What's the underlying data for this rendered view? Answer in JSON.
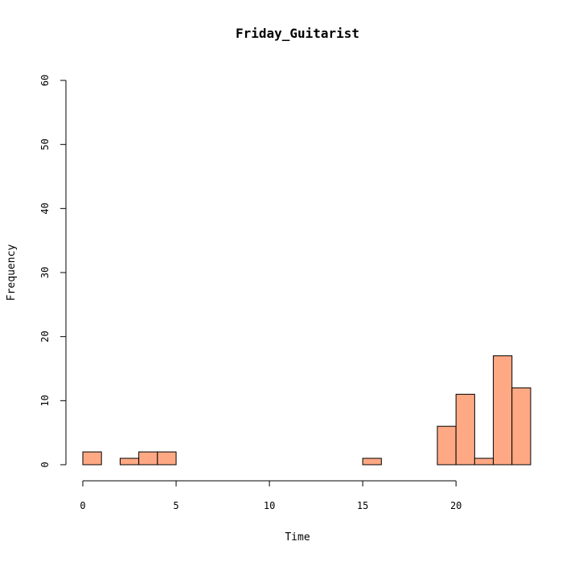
{
  "chart_data": {
    "type": "bar",
    "title": "Friday_Guitarist",
    "xlabel": "Time",
    "ylabel": "Frequency",
    "xlim": [
      0,
      24
    ],
    "ylim": [
      0,
      60
    ],
    "xticks": [
      0,
      5,
      10,
      15,
      20
    ],
    "yticks": [
      0,
      10,
      20,
      30,
      40,
      50,
      60
    ],
    "bins": [
      {
        "start": 0,
        "end": 1,
        "count": 2
      },
      {
        "start": 1,
        "end": 2,
        "count": 0
      },
      {
        "start": 2,
        "end": 3,
        "count": 1
      },
      {
        "start": 3,
        "end": 4,
        "count": 2
      },
      {
        "start": 4,
        "end": 5,
        "count": 2
      },
      {
        "start": 5,
        "end": 6,
        "count": 0
      },
      {
        "start": 6,
        "end": 7,
        "count": 0
      },
      {
        "start": 7,
        "end": 8,
        "count": 0
      },
      {
        "start": 8,
        "end": 9,
        "count": 0
      },
      {
        "start": 9,
        "end": 10,
        "count": 0
      },
      {
        "start": 10,
        "end": 11,
        "count": 0
      },
      {
        "start": 11,
        "end": 12,
        "count": 0
      },
      {
        "start": 12,
        "end": 13,
        "count": 0
      },
      {
        "start": 13,
        "end": 14,
        "count": 0
      },
      {
        "start": 14,
        "end": 15,
        "count": 0
      },
      {
        "start": 15,
        "end": 16,
        "count": 1
      },
      {
        "start": 16,
        "end": 17,
        "count": 0
      },
      {
        "start": 17,
        "end": 18,
        "count": 0
      },
      {
        "start": 18,
        "end": 19,
        "count": 0
      },
      {
        "start": 19,
        "end": 20,
        "count": 6
      },
      {
        "start": 20,
        "end": 21,
        "count": 11
      },
      {
        "start": 21,
        "end": 22,
        "count": 1
      },
      {
        "start": 22,
        "end": 23,
        "count": 17
      },
      {
        "start": 23,
        "end": 24,
        "count": 12
      }
    ],
    "bar_color": "#FFA984",
    "grid": false,
    "legend": "none"
  }
}
